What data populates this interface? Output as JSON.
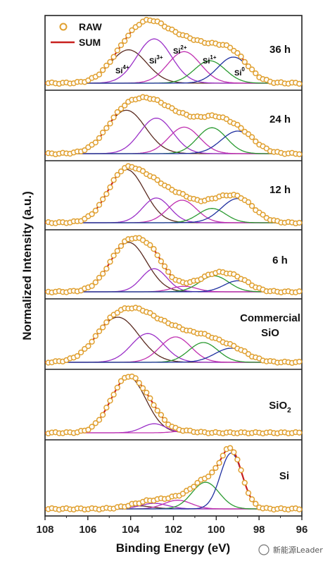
{
  "chart_data": {
    "type": "line",
    "xlabel": "Binding Energy (eV)",
    "ylabel": "Normalized Intensity (a.u.)",
    "xlim": [
      108,
      96
    ],
    "x_reversed": true,
    "x_ticks": [
      "108",
      "106",
      "104",
      "102",
      "100",
      "98",
      "96"
    ],
    "legend": {
      "placement": "top-left",
      "entries": [
        "RAW",
        "SUM"
      ]
    },
    "colors": {
      "raw": "#e0a030",
      "sum": "#c8201e",
      "Si4+": "#5a2a20",
      "Si3+": "#9b30c8",
      "Si2+": "#c030b0",
      "Si1+": "#2a9a30",
      "Si0": "#2030a0"
    },
    "component_labels": [
      {
        "text": "Si",
        "sup": "4+",
        "color": "#5a2a20"
      },
      {
        "text": "Si",
        "sup": "3+",
        "color": "#9b30c8"
      },
      {
        "text": "Si",
        "sup": "2+",
        "color": "#c030b0"
      },
      {
        "text": "Si",
        "sup": "1+",
        "color": "#2a9a30"
      },
      {
        "text": "Si",
        "sup": "0",
        "color": "#2030a0"
      }
    ],
    "panels": [
      {
        "label": "36 h",
        "components": [
          {
            "name": "Si4+",
            "center": 104.1,
            "amp": 0.55,
            "fwhm": 2.0
          },
          {
            "name": "Si3+",
            "center": 102.9,
            "amp": 0.73,
            "fwhm": 1.9
          },
          {
            "name": "Si2+",
            "center": 101.5,
            "amp": 0.52,
            "fwhm": 1.8
          },
          {
            "name": "Si1+",
            "center": 100.3,
            "amp": 0.37,
            "fwhm": 1.7
          },
          {
            "name": "Si0",
            "center": 99.2,
            "amp": 0.43,
            "fwhm": 1.7
          }
        ]
      },
      {
        "label": "24 h",
        "components": [
          {
            "name": "Si4+",
            "center": 104.2,
            "amp": 0.77,
            "fwhm": 2.1
          },
          {
            "name": "Si3+",
            "center": 102.8,
            "amp": 0.63,
            "fwhm": 1.8
          },
          {
            "name": "Si2+",
            "center": 101.5,
            "amp": 0.47,
            "fwhm": 1.7
          },
          {
            "name": "Si1+",
            "center": 100.2,
            "amp": 0.46,
            "fwhm": 1.6
          },
          {
            "name": "Si0",
            "center": 99.0,
            "amp": 0.4,
            "fwhm": 1.8
          }
        ]
      },
      {
        "label": "12 h",
        "components": [
          {
            "name": "Si4+",
            "center": 104.2,
            "amp": 0.97,
            "fwhm": 2.0
          },
          {
            "name": "Si3+",
            "center": 102.8,
            "amp": 0.45,
            "fwhm": 1.5
          },
          {
            "name": "Si2+",
            "center": 101.6,
            "amp": 0.41,
            "fwhm": 1.6
          },
          {
            "name": "Si1+",
            "center": 100.2,
            "amp": 0.26,
            "fwhm": 1.5
          },
          {
            "name": "Si0",
            "center": 99.0,
            "amp": 0.44,
            "fwhm": 1.8
          }
        ]
      },
      {
        "label": "6 h",
        "components": [
          {
            "name": "Si4+",
            "center": 104.1,
            "amp": 0.9,
            "fwhm": 2.0
          },
          {
            "name": "Si3+",
            "center": 102.9,
            "amp": 0.42,
            "fwhm": 1.4
          },
          {
            "name": "Si2+",
            "center": 101.5,
            "amp": 0.1,
            "fwhm": 1.4
          },
          {
            "name": "Si1+",
            "center": 100.1,
            "amp": 0.29,
            "fwhm": 1.6
          },
          {
            "name": "Si0",
            "center": 99.0,
            "amp": 0.2,
            "fwhm": 1.5
          }
        ]
      },
      {
        "label": "Commercial SiO",
        "label_lines": [
          "Commercial",
          "SiO"
        ],
        "components": [
          {
            "name": "Si4+",
            "center": 104.6,
            "amp": 0.8,
            "fwhm": 2.3
          },
          {
            "name": "Si3+",
            "center": 103.2,
            "amp": 0.51,
            "fwhm": 1.8
          },
          {
            "name": "Si2+",
            "center": 101.9,
            "amp": 0.45,
            "fwhm": 1.7
          },
          {
            "name": "Si1+",
            "center": 100.6,
            "amp": 0.35,
            "fwhm": 1.6
          },
          {
            "name": "Si0",
            "center": 99.3,
            "amp": 0.25,
            "fwhm": 1.8
          }
        ]
      },
      {
        "label": "SiO2",
        "label_main": "SiO",
        "label_sub": "2",
        "components": [
          {
            "name": "Si4+",
            "center": 104.1,
            "amp": 0.99,
            "fwhm": 1.9
          },
          {
            "name": "Si3+",
            "center": 102.9,
            "amp": 0.16,
            "fwhm": 1.3
          },
          {
            "name": "Si2+",
            "center": 101.5,
            "amp": 0.03,
            "fwhm": 1.2
          }
        ]
      },
      {
        "label": "Si",
        "components": [
          {
            "name": "Si4+",
            "center": 103.7,
            "amp": 0.05,
            "fwhm": 1.6
          },
          {
            "name": "Si3+",
            "center": 102.9,
            "amp": 0.09,
            "fwhm": 1.5
          },
          {
            "name": "Si2+",
            "center": 101.8,
            "amp": 0.14,
            "fwhm": 1.5
          },
          {
            "name": "Si1+",
            "center": 100.5,
            "amp": 0.43,
            "fwhm": 1.5
          },
          {
            "name": "Si0",
            "center": 99.3,
            "amp": 0.9,
            "fwhm": 1.2
          }
        ]
      }
    ]
  },
  "watermark": "新能源Leader"
}
